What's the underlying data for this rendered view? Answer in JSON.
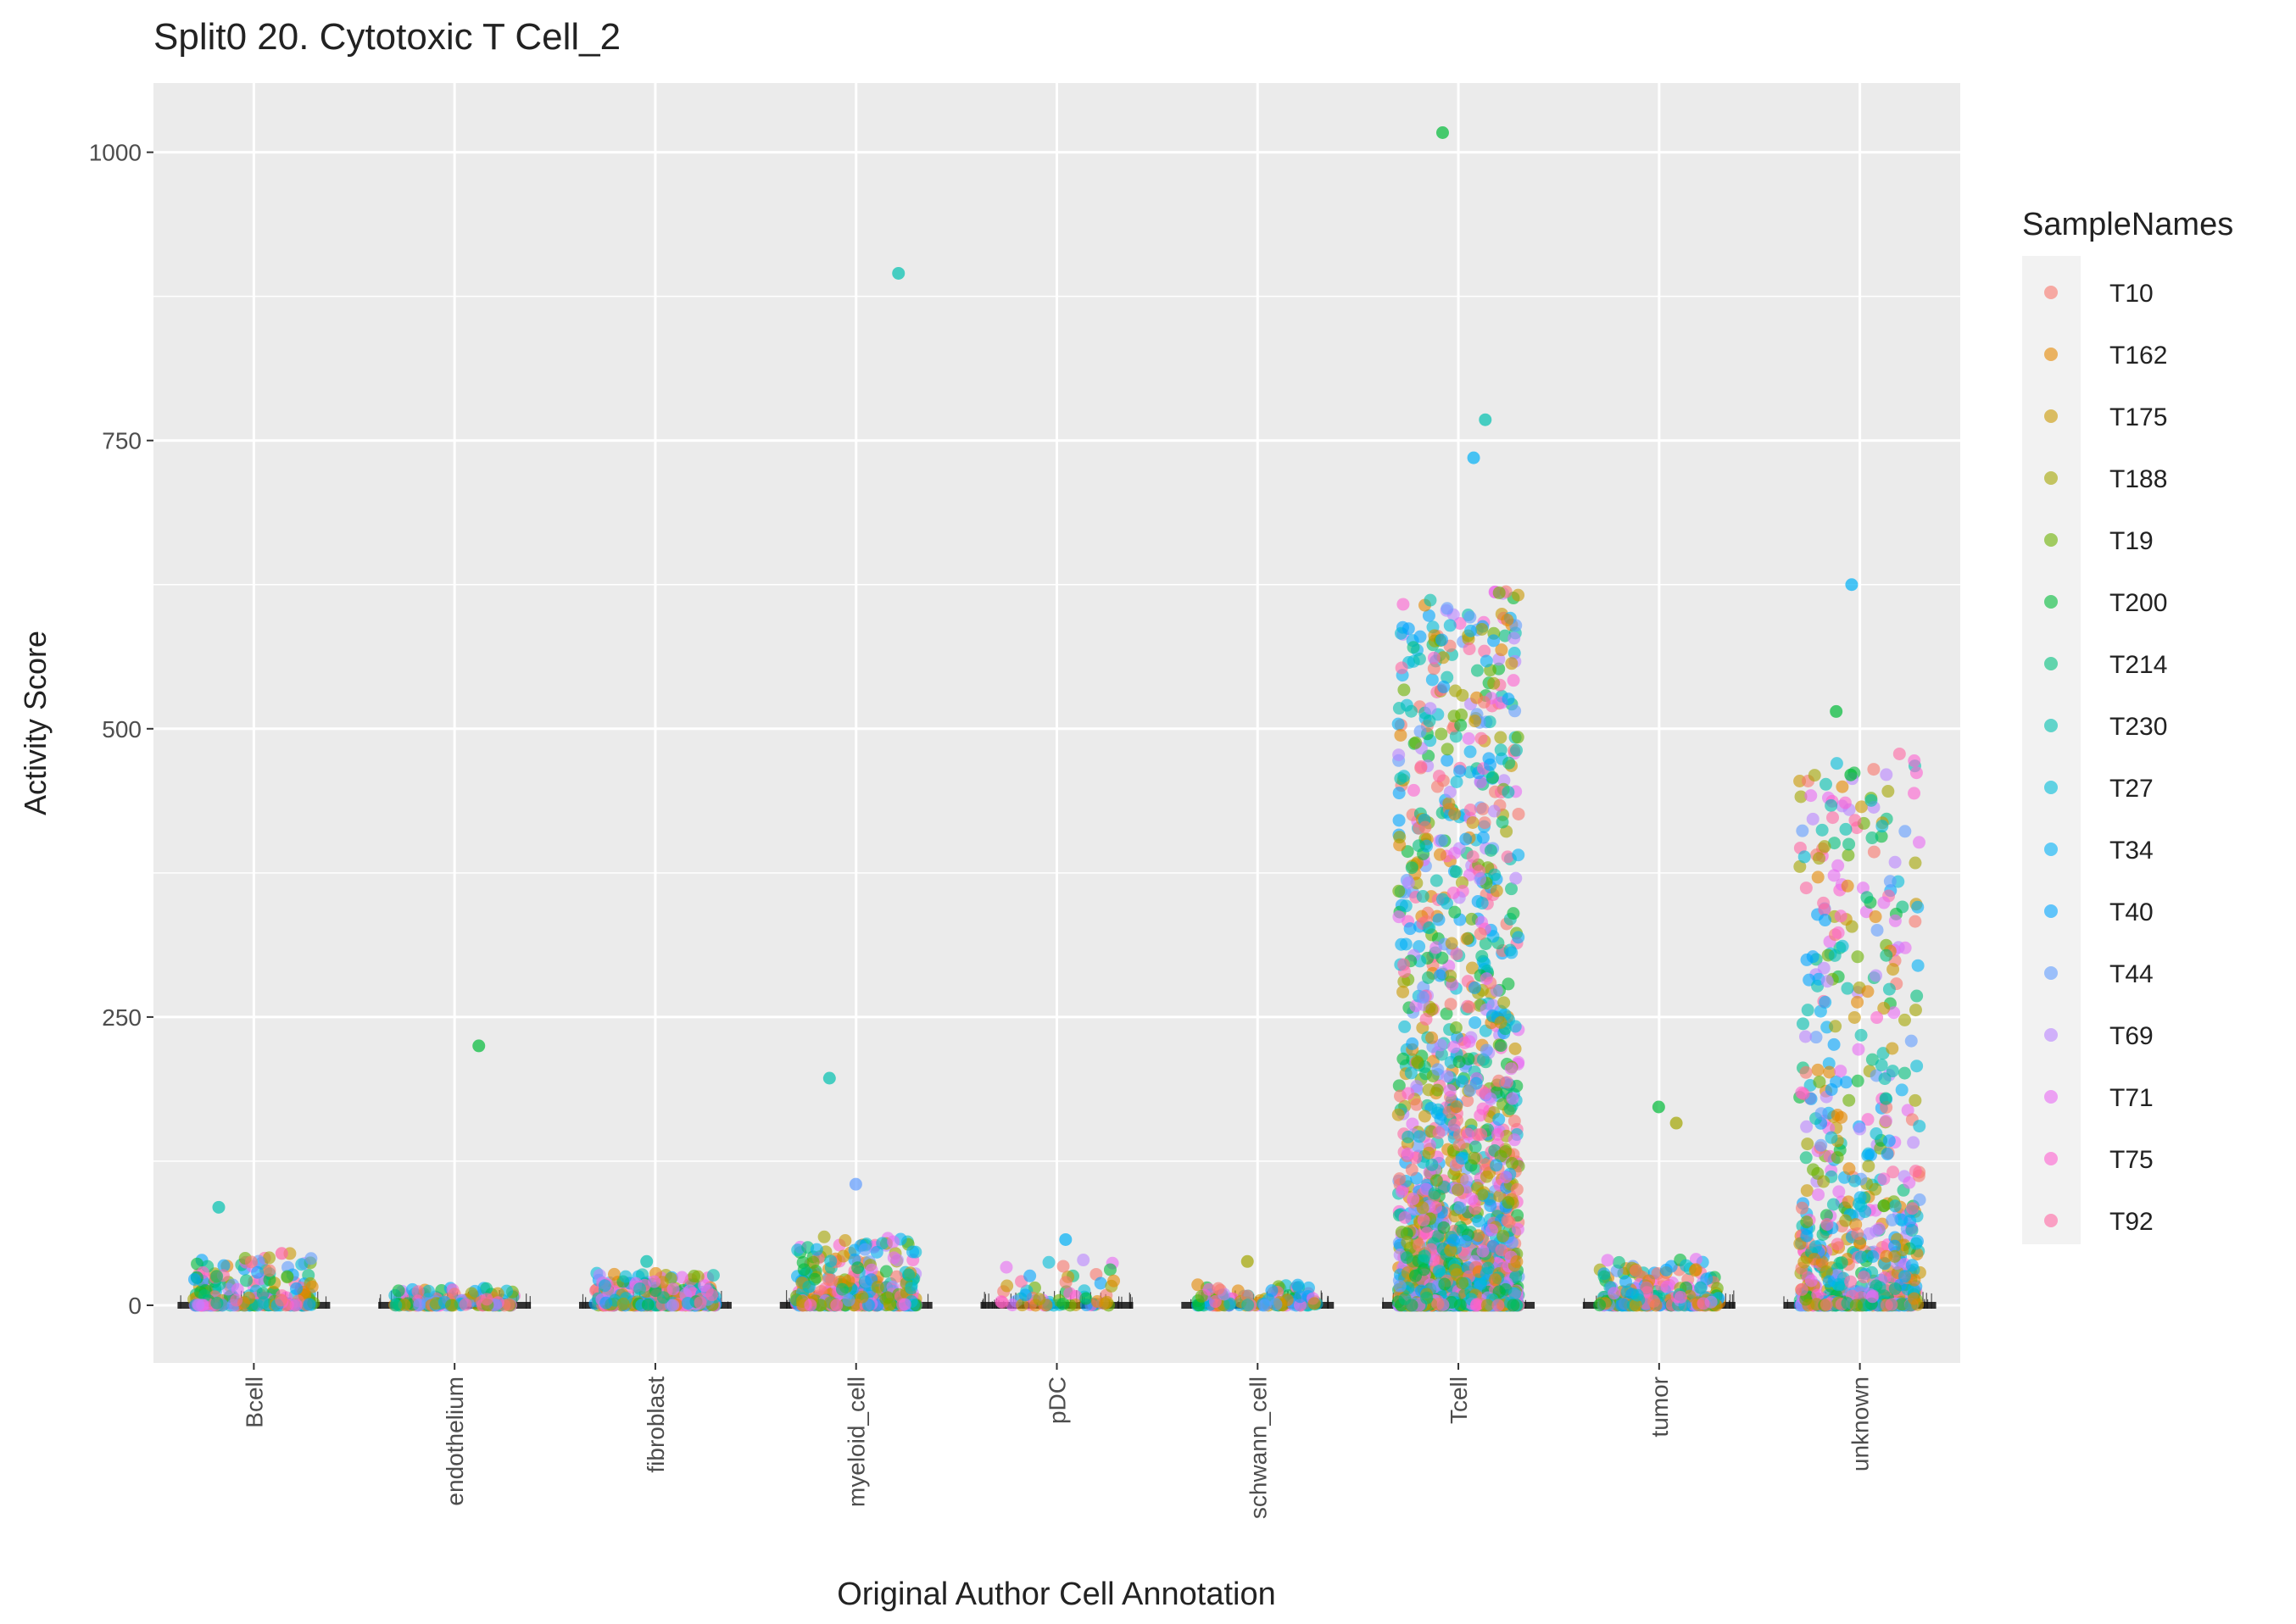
{
  "chart_data": {
    "type": "scatter",
    "title": "Split0 20. Cytotoxic T Cell_2",
    "xlabel": "Original Author Cell Annotation",
    "ylabel": "Activity Score",
    "ylim": [
      -50,
      1060
    ],
    "yticks": [
      0,
      250,
      500,
      750,
      1000
    ],
    "categories": [
      "Bcell",
      "endothelium",
      "fibroblast",
      "myeloid_cell",
      "pDC",
      "schwann_cell",
      "Tcell",
      "tumor",
      "unknown"
    ],
    "grid": true,
    "legend_position": "right",
    "legend": {
      "title": "SampleNames",
      "entries": [
        {
          "name": "T10",
          "color": "#F8766D"
        },
        {
          "name": "T162",
          "color": "#E58700"
        },
        {
          "name": "T175",
          "color": "#C99800"
        },
        {
          "name": "T188",
          "color": "#A3A500"
        },
        {
          "name": "T19",
          "color": "#6BB100"
        },
        {
          "name": "T200",
          "color": "#00BA38"
        },
        {
          "name": "T214",
          "color": "#00BF7D"
        },
        {
          "name": "T230",
          "color": "#00C0AF"
        },
        {
          "name": "T27",
          "color": "#00BCD8"
        },
        {
          "name": "T34",
          "color": "#00B0F6"
        },
        {
          "name": "T40",
          "color": "#00A5FF"
        },
        {
          "name": "T44",
          "color": "#619CFF"
        },
        {
          "name": "T69",
          "color": "#B983FF"
        },
        {
          "name": "T71",
          "color": "#E76BF3"
        },
        {
          "name": "T75",
          "color": "#FD61D1"
        },
        {
          "name": "T92",
          "color": "#FF67A4"
        }
      ]
    },
    "highlighted_points": [
      {
        "category": "Bcell",
        "value": 85,
        "sample": "T230"
      },
      {
        "category": "Bcell",
        "value": 45,
        "sample": "T92"
      },
      {
        "category": "endothelium",
        "value": 225,
        "sample": "T200"
      },
      {
        "category": "fibroblast",
        "value": 38,
        "sample": "T230"
      },
      {
        "category": "myeloid_cell",
        "value": 895,
        "sample": "T230"
      },
      {
        "category": "myeloid_cell",
        "value": 197,
        "sample": "T230"
      },
      {
        "category": "myeloid_cell",
        "value": 105,
        "sample": "T44"
      },
      {
        "category": "pDC",
        "value": 57,
        "sample": "T34"
      },
      {
        "category": "schwann_cell",
        "value": 38,
        "sample": "T188"
      },
      {
        "category": "Tcell",
        "value": 1017,
        "sample": "T200"
      },
      {
        "category": "Tcell",
        "value": 768,
        "sample": "T230"
      },
      {
        "category": "Tcell",
        "value": 735,
        "sample": "T34"
      },
      {
        "category": "tumor",
        "value": 172,
        "sample": "T200"
      },
      {
        "category": "tumor",
        "value": 158,
        "sample": "T188"
      },
      {
        "category": "unknown",
        "value": 625,
        "sample": "T34"
      },
      {
        "category": "unknown",
        "value": 515,
        "sample": "T200"
      },
      {
        "category": "unknown",
        "value": 460,
        "sample": "T200"
      }
    ],
    "category_spread": [
      {
        "category": "Bcell",
        "n": 220,
        "max": 45
      },
      {
        "category": "endothelium",
        "n": 140,
        "max": 15
      },
      {
        "category": "fibroblast",
        "n": 260,
        "max": 28
      },
      {
        "category": "myeloid_cell",
        "n": 320,
        "max": 60
      },
      {
        "category": "pDC",
        "n": 60,
        "max": 40
      },
      {
        "category": "schwann_cell",
        "n": 120,
        "max": 18
      },
      {
        "category": "Tcell",
        "n": 1800,
        "max": 620
      },
      {
        "category": "tumor",
        "n": 260,
        "max": 40
      },
      {
        "category": "unknown",
        "n": 700,
        "max": 480
      }
    ]
  }
}
